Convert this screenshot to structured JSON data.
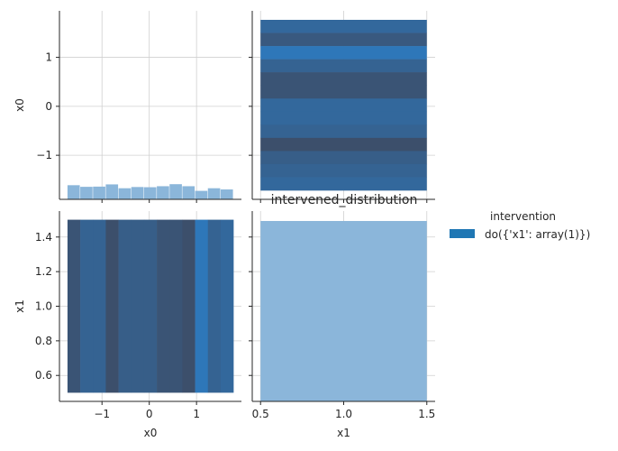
{
  "chart_data": {
    "type": "pairplot",
    "variables": [
      "x0",
      "x1"
    ],
    "grid": true,
    "axis_labels": {
      "x_bottom": [
        "x0",
        "x1"
      ],
      "y_left": [
        "x0",
        "x1"
      ]
    },
    "panel_title": "intervened_distribution",
    "legend": {
      "title": "intervention",
      "placement": "right",
      "entries": [
        {
          "label": "do({'x1': array(1)})",
          "color": "#1f77b4"
        }
      ]
    },
    "x0_axis": {
      "range": [
        -1.9,
        1.95
      ],
      "ticks": [
        -1,
        0,
        1
      ],
      "tick_labels": [
        "−1",
        "0",
        "1"
      ]
    },
    "x1_axis": {
      "range": [
        0.45,
        1.55
      ],
      "ticks": [
        0.5,
        1.0,
        1.5
      ],
      "tick_labels": [
        "0.5",
        "1.0",
        "1.5"
      ],
      "y_ticks": [
        0.6,
        0.8,
        1.0,
        1.2,
        1.4
      ],
      "y_tick_labels": [
        "0.6",
        "0.8",
        "1.0",
        "1.2",
        "1.4"
      ]
    },
    "diag_x0_hist": {
      "bin_edges": [
        -1.73,
        -1.46,
        -1.19,
        -0.92,
        -0.65,
        -0.38,
        -0.11,
        0.16,
        0.43,
        0.7,
        0.97,
        1.24,
        1.51,
        1.78
      ],
      "density": [
        0.07,
        0.062,
        0.063,
        0.074,
        0.055,
        0.061,
        0.06,
        0.065,
        0.075,
        0.065,
        0.042,
        0.055,
        0.049
      ]
    },
    "offdiag_x0_vs_x1_hist2d": {
      "x0_bin_edges": [
        -1.73,
        -1.46,
        -1.19,
        -0.92,
        -0.65,
        -0.38,
        -0.11,
        0.16,
        0.43,
        0.7,
        0.97,
        1.24,
        1.51,
        1.78
      ],
      "x1_range": [
        0.5,
        1.5
      ],
      "counts": [
        5,
        8,
        8,
        4,
        7,
        7,
        7,
        5,
        5,
        4,
        12,
        8,
        9
      ]
    },
    "diag_x1_hist": {
      "bin_edges": [
        0.5,
        1.5
      ],
      "density": [
        1.0
      ]
    },
    "colors": {
      "hist_light": "#8bb6da",
      "dark_low": "#3c4f6b",
      "dark_high": "#2e77b9",
      "spine": "#262626",
      "grid": "#d0d0d0"
    }
  }
}
